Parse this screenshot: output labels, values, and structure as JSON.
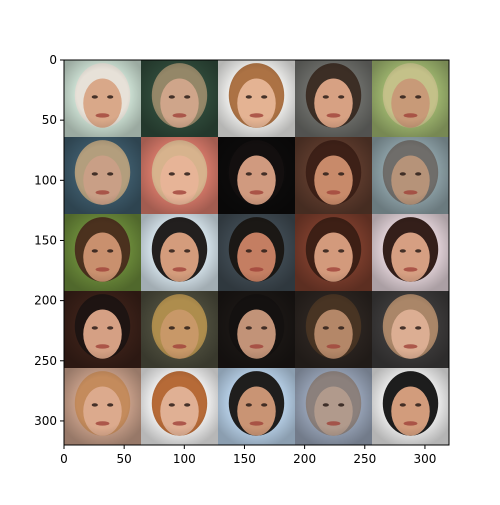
{
  "chart_data": {
    "type": "heatmap",
    "title": "",
    "xlabel": "",
    "ylabel": "",
    "xlim": [
      0,
      320
    ],
    "ylim": [
      320,
      0
    ],
    "grid": false,
    "x_ticks": [
      0,
      50,
      100,
      150,
      200,
      250,
      300
    ],
    "y_ticks": [
      0,
      50,
      100,
      150,
      200,
      250,
      300
    ],
    "image_grid": {
      "rows": 5,
      "cols": 5,
      "tile_size": 64,
      "tiles": [
        [
          {
            "bg": "#cfe3d6",
            "skin": "#d9a889",
            "hair": "#e8e0d8"
          },
          {
            "bg": "#2f4a3a",
            "skin": "#cfa58a",
            "hair": "#9a8a6a"
          },
          {
            "bg": "#f2f2f0",
            "skin": "#e4b393",
            "hair": "#a86a3a"
          },
          {
            "bg": "#6d6e6a",
            "skin": "#d7a183",
            "hair": "#3a2a22"
          },
          {
            "bg": "#9fb66f",
            "skin": "#c89a78",
            "hair": "#c6c28a"
          }
        ],
        [
          {
            "bg": "#3d5a6a",
            "skin": "#c99f86",
            "hair": "#b9a27e"
          },
          {
            "bg": "#d87a6a",
            "skin": "#e7b497",
            "hair": "#d7b68f"
          },
          {
            "bg": "#0c0b0b",
            "skin": "#d09a7f",
            "hair": "#141010"
          },
          {
            "bg": "#5c3a2c",
            "skin": "#c88a6a",
            "hair": "#3b1f16"
          },
          {
            "bg": "#8ea2a8",
            "skin": "#b69379",
            "hair": "#6e6a66"
          }
        ],
        [
          {
            "bg": "#6b8a3a",
            "skin": "#c9906e",
            "hair": "#4a2c1c"
          },
          {
            "bg": "#d8e6ee",
            "skin": "#d49c7c",
            "hair": "#181412"
          },
          {
            "bg": "#3f4a52",
            "skin": "#c47e62",
            "hair": "#191512"
          },
          {
            "bg": "#7b3d2c",
            "skin": "#d39a7c",
            "hair": "#3a1e14"
          },
          {
            "bg": "#e4d4da",
            "skin": "#d69f82",
            "hair": "#2a1510"
          }
        ],
        [
          {
            "bg": "#3a2018",
            "skin": "#d5a084",
            "hair": "#1c1412"
          },
          {
            "bg": "#4c4c3c",
            "skin": "#c89868",
            "hair": "#b3904e"
          },
          {
            "bg": "#1a1614",
            "skin": "#c29378",
            "hair": "#141110"
          },
          {
            "bg": "#2b2420",
            "skin": "#b48768",
            "hair": "#4a3624"
          },
          {
            "bg": "#3c3a3a",
            "skin": "#dcae93",
            "hair": "#b08a6a"
          }
        ],
        [
          {
            "bg": "#c9a08a",
            "skin": "#dcaa8d",
            "hair": "#c48a5a"
          },
          {
            "bg": "#f4f4f4",
            "skin": "#e0b094",
            "hair": "#b2622c"
          },
          {
            "bg": "#b9d2ea",
            "skin": "#c99474",
            "hair": "#161412"
          },
          {
            "bg": "#98a4b8",
            "skin": "#b19a8c",
            "hair": "#8a7e78"
          },
          {
            "bg": "#f0f0f0",
            "skin": "#d29c7c",
            "hair": "#111111"
          }
        ]
      ]
    }
  }
}
